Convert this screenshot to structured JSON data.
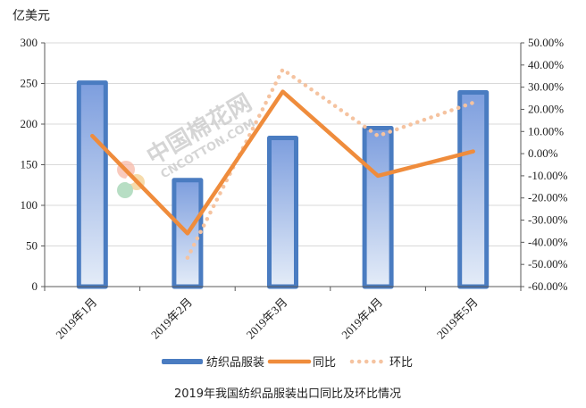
{
  "chart_data": {
    "type": "bar",
    "title": "2019年我国纺织品服装出口同比及环比情况",
    "ylabel": "亿美元",
    "categories": [
      "2019年1月",
      "2019年2月",
      "2019年3月",
      "2019年4月",
      "2019年5月"
    ],
    "ylim": [
      0,
      300
    ],
    "y2lim": [
      -60,
      50
    ],
    "yticks": [
      "0",
      "50",
      "100",
      "150",
      "200",
      "250",
      "300"
    ],
    "y2ticks": [
      "-60.00%",
      "-50.00%",
      "-40.00%",
      "-30.00%",
      "-20.00%",
      "-10.00%",
      "0.00%",
      "10.00%",
      "20.00%",
      "30.00%",
      "40.00%",
      "50.00%"
    ],
    "grid": true,
    "legend_position": "bottom",
    "series": [
      {
        "name": "纺织品服装",
        "kind": "bar",
        "axis": "left",
        "color": "#4a7cc1",
        "values": [
          251,
          131,
          183,
          195,
          239
        ]
      },
      {
        "name": "同比",
        "kind": "line",
        "axis": "right",
        "color": "#ef8c3c",
        "values": [
          8,
          -36,
          28,
          -10,
          1
        ]
      },
      {
        "name": "环比",
        "kind": "dotted-line",
        "axis": "right",
        "color": "#f5c3a0",
        "values": [
          null,
          -47,
          38,
          8,
          23
        ]
      }
    ]
  },
  "watermark": {
    "main": "中国棉花网",
    "sub": "CNCOTTON.COM"
  }
}
